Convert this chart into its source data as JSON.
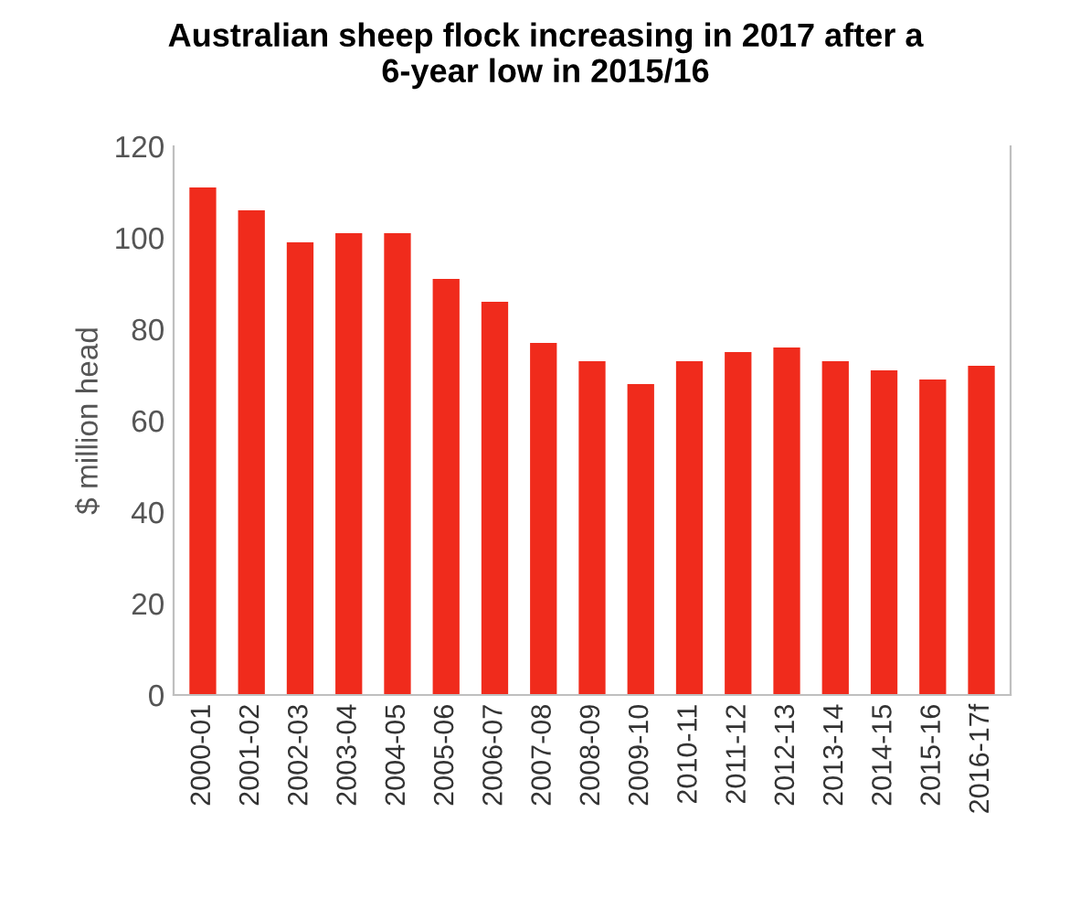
{
  "chart_data": {
    "type": "bar",
    "title": "Australian sheep flock increasing in 2017 after a\n6-year low in 2015/16",
    "ylabel": "$ million head",
    "categories": [
      "2000-01",
      "2001-02",
      "2002-03",
      "2003-04",
      "2004-05",
      "2005-06",
      "2006-07",
      "2007-08",
      "2008-09",
      "2009-10",
      "2010-11",
      "2011-12",
      "2012-13",
      "2013-14",
      "2014-15",
      "2015-16",
      "2016-17f"
    ],
    "values": [
      111,
      106,
      99,
      101,
      101,
      91,
      86,
      77,
      73,
      68,
      73,
      75,
      76,
      73,
      71,
      69,
      72
    ],
    "color": "#f02b1c",
    "ylim": [
      0,
      120
    ],
    "yticks": [
      0,
      20,
      40,
      60,
      80,
      100,
      120
    ],
    "grid": false,
    "legend": false
  }
}
